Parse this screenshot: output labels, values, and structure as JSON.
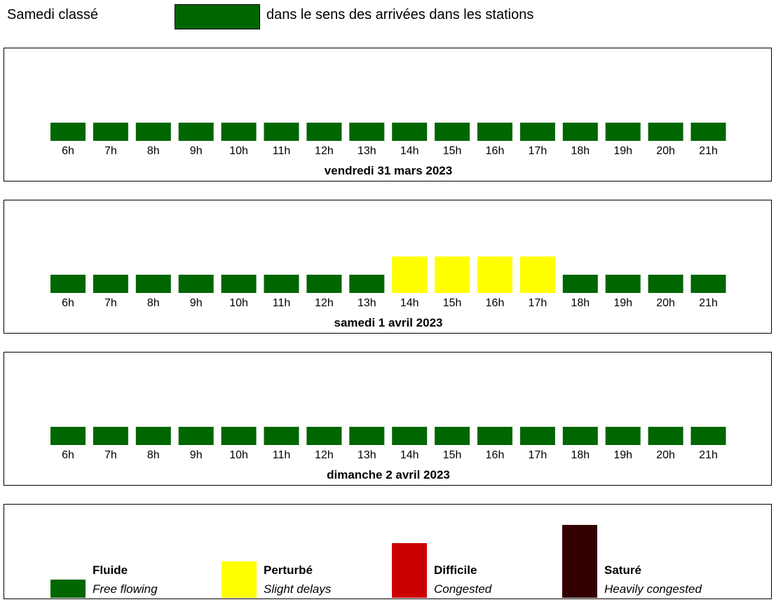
{
  "header": {
    "title": "Samedi classé",
    "swatch_color": "#006600",
    "description": "dans le sens des arrivées dans les stations"
  },
  "chart_data": [
    {
      "type": "bar",
      "title": "vendredi 31 mars 2023",
      "categories": [
        "6h",
        "7h",
        "8h",
        "9h",
        "10h",
        "11h",
        "12h",
        "13h",
        "14h",
        "15h",
        "16h",
        "17h",
        "18h",
        "19h",
        "20h",
        "21h"
      ],
      "levels": [
        1,
        1,
        1,
        1,
        1,
        1,
        1,
        1,
        1,
        1,
        1,
        1,
        1,
        1,
        1,
        1
      ],
      "ylim": [
        0,
        4
      ],
      "grid": false
    },
    {
      "type": "bar",
      "title": "samedi 1 avril 2023",
      "categories": [
        "6h",
        "7h",
        "8h",
        "9h",
        "10h",
        "11h",
        "12h",
        "13h",
        "14h",
        "15h",
        "16h",
        "17h",
        "18h",
        "19h",
        "20h",
        "21h"
      ],
      "levels": [
        1,
        1,
        1,
        1,
        1,
        1,
        1,
        1,
        2,
        2,
        2,
        2,
        1,
        1,
        1,
        1
      ],
      "ylim": [
        0,
        4
      ],
      "grid": false
    },
    {
      "type": "bar",
      "title": "dimanche 2 avril 2023",
      "categories": [
        "6h",
        "7h",
        "8h",
        "9h",
        "10h",
        "11h",
        "12h",
        "13h",
        "14h",
        "15h",
        "16h",
        "17h",
        "18h",
        "19h",
        "20h",
        "21h"
      ],
      "levels": [
        1,
        1,
        1,
        1,
        1,
        1,
        1,
        1,
        1,
        1,
        1,
        1,
        1,
        1,
        1,
        1
      ],
      "ylim": [
        0,
        4
      ],
      "grid": false
    }
  ],
  "legend": {
    "items": [
      {
        "level": 1,
        "label": "Fluide",
        "sub": "Free flowing",
        "color": "#006600"
      },
      {
        "level": 2,
        "label": "Perturbé",
        "sub": "Slight delays",
        "color": "#ffff00"
      },
      {
        "level": 3,
        "label": "Difficile",
        "sub": "Congested",
        "color": "#cc0000"
      },
      {
        "level": 4,
        "label": "Saturé",
        "sub": "Heavily congested",
        "color": "#330000"
      }
    ]
  }
}
